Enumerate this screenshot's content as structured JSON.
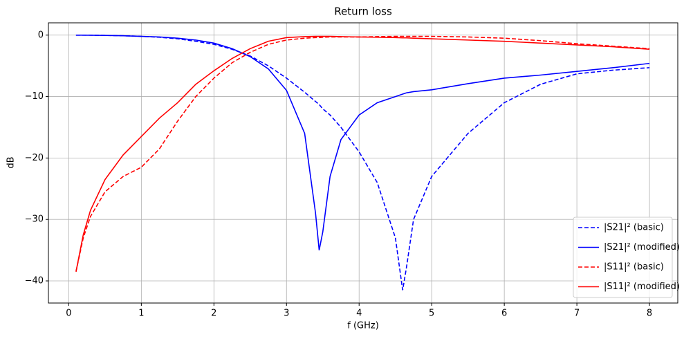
{
  "chart_data": {
    "type": "line",
    "title": "Return loss",
    "x_label": "f (GHz)",
    "y_label": "dB",
    "x": [
      0.1,
      0.2,
      0.3,
      0.5,
      0.75,
      1,
      1.25,
      1.5,
      1.75,
      2,
      2.25,
      2.5,
      2.75,
      3,
      3.25,
      3.4,
      3.45,
      3.5,
      3.6,
      3.75,
      4,
      4.25,
      4.5,
      4.6,
      4.65,
      4.75,
      5,
      5.5,
      6,
      6.5,
      7,
      7.5,
      8
    ],
    "series": [
      {
        "name": "|S21|² (basic)",
        "color": "#0000ff",
        "dashed": true,
        "values": [
          0,
          0,
          0,
          -0.05,
          -0.1,
          -0.2,
          -0.35,
          -0.6,
          -1,
          -1.5,
          -2.3,
          -3.4,
          -5,
          -7,
          -9.3,
          -10.8,
          -11.3,
          -12,
          -13,
          -15,
          -19,
          -24,
          -33,
          -41.5,
          -38,
          -30,
          -23,
          -16,
          -11,
          -8,
          -6.3,
          -5.7,
          -5.3
        ]
      },
      {
        "name": "|S21|² (modified)",
        "color": "#0000ff",
        "dashed": false,
        "values": [
          0,
          0,
          -0.02,
          -0.05,
          -0.1,
          -0.2,
          -0.3,
          -0.5,
          -0.8,
          -1.3,
          -2.2,
          -3.5,
          -5.5,
          -9,
          -16,
          -29,
          -35,
          -32,
          -23,
          -17,
          -13,
          -11,
          -10,
          -9.6,
          -9.4,
          -9.2,
          -8.9,
          -7.9,
          -7,
          -6.5,
          -5.9,
          -5.3,
          -4.6
        ]
      },
      {
        "name": "|S11|² (basic)",
        "color": "#ff0000",
        "dashed": true,
        "values": [
          -38.5,
          -33,
          -29.5,
          -25.5,
          -23,
          -21.5,
          -18.5,
          -14,
          -10,
          -7,
          -4.5,
          -2.8,
          -1.5,
          -0.8,
          -0.5,
          -0.4,
          -0.4,
          -0.35,
          -0.3,
          -0.3,
          -0.3,
          -0.25,
          -0.2,
          -0.2,
          -0.2,
          -0.2,
          -0.2,
          -0.3,
          -0.5,
          -0.9,
          -1.4,
          -1.8,
          -2.2
        ]
      },
      {
        "name": "|S11|² (modified)",
        "color": "#ff0000",
        "dashed": false,
        "values": [
          -38.5,
          -32.5,
          -28.5,
          -23.5,
          -19.5,
          -16.5,
          -13.5,
          -11,
          -8,
          -5.8,
          -3.8,
          -2.2,
          -1,
          -0.4,
          -0.25,
          -0.2,
          -0.2,
          -0.2,
          -0.2,
          -0.25,
          -0.3,
          -0.35,
          -0.4,
          -0.45,
          -0.45,
          -0.5,
          -0.6,
          -0.8,
          -1,
          -1.3,
          -1.6,
          -1.9,
          -2.3
        ]
      }
    ],
    "xlim": [
      -0.28,
      8.39
    ],
    "xticks": [
      0,
      1,
      2,
      3,
      4,
      5,
      6,
      7,
      8
    ],
    "ylim": [
      -43.6,
      2.0
    ],
    "yticks": [
      {
        "value": -40,
        "label": "−40"
      },
      {
        "value": -30,
        "label": "−30"
      },
      {
        "value": -20,
        "label": "−20"
      },
      {
        "value": -10,
        "label": "−10"
      },
      0
    ],
    "grid": true,
    "legend_position": "lower-right"
  }
}
